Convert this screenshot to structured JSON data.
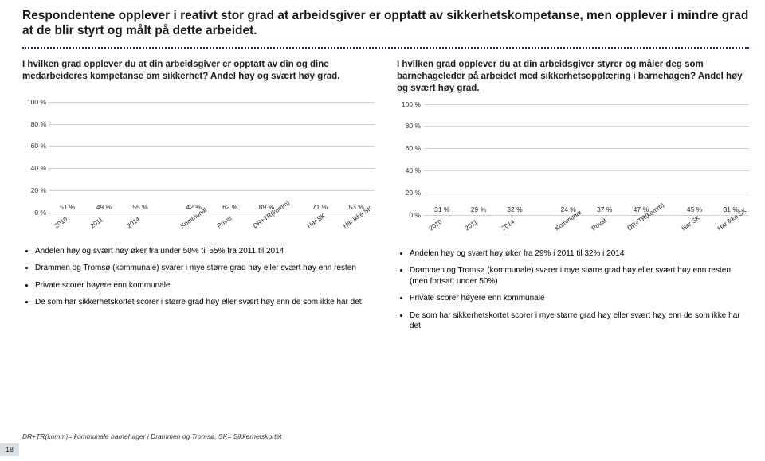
{
  "page_number": "18",
  "main_title": "Respondentene opplever i reativt stor grad at arbeidsgiver er opptatt av sikkerhetskompetanse, men opplever i mindre grad at de blir styrt og målt på dette arbeidet.",
  "footnote": "DR+TR(komm)= kommunale barnehager i Drammen og Tromsø, SK= Sikkerhetskortet",
  "chart_common": {
    "ylim_max": 100,
    "ytick_step": 20,
    "grid_color": "#d0d0d0",
    "background_color": "#ffffff"
  },
  "left": {
    "question": "I hvilken grad opplever du at din arbeidsgiver er opptatt av din og dine medarbeideres kompetanse om sikkerhet? Andel høy og svært høy grad.",
    "chart": {
      "type": "bar",
      "categories": [
        "2010",
        "2011",
        "2014",
        "Kommunal",
        "Privat",
        "DR+TR(komm)",
        "Har SK",
        "Har ikke SK"
      ],
      "values": [
        51,
        49,
        55,
        42,
        62,
        89,
        71,
        53
      ],
      "bar_colors": [
        "#a7cfe8",
        "#6fb0d8",
        "#3a8cc4",
        "#a7cfe8",
        "#6fb0d8",
        "#3a8cc4",
        "#a7cfe8",
        "#6fb0d8"
      ],
      "group_gap_after": [
        false,
        false,
        true,
        false,
        false,
        true,
        false,
        false
      ]
    },
    "bullets": [
      "Andelen høy og svært høy øker fra under 50% til 55% fra 2011 til 2014",
      "Drammen og Tromsø (kommunale) svarer i mye større grad høy eller svært høy enn resten",
      "Private scorer høyere enn kommunale",
      "De som har sikkerhetskortet scorer i større grad høy eller svært høy enn de som ikke har det"
    ]
  },
  "right": {
    "question": "I hvilken grad opplever du at din arbeidsgiver styrer og måler deg som barnehageleder på arbeidet med sikkerhetsopplæring i barnehagen? Andel høy og svært høy grad.",
    "chart": {
      "type": "bar",
      "categories": [
        "2010",
        "2011",
        "2014",
        "Kommunal",
        "Privat",
        "DR+TR(komm)",
        "Har SK",
        "Har ikke SK"
      ],
      "values": [
        31,
        29,
        32,
        24,
        37,
        47,
        45,
        31
      ],
      "bar_colors": [
        "#a7cfe8",
        "#6fb0d8",
        "#3a8cc4",
        "#a7cfe8",
        "#6fb0d8",
        "#3a8cc4",
        "#a7cfe8",
        "#6fb0d8"
      ],
      "group_gap_after": [
        false,
        false,
        true,
        false,
        false,
        true,
        false,
        false
      ]
    },
    "bullets": [
      "Andelen høy og svært høy øker fra 29% i 2011 til 32% i 2014",
      "Drammen og Tromsø (kommunale) svarer i mye større grad høy eller svært høy enn resten, (men fortsatt under 50%)",
      "Private scorer høyere enn kommunale",
      "De som har sikkerhetskortet scorer i mye større grad høy eller svært høy enn de som ikke har det"
    ]
  }
}
